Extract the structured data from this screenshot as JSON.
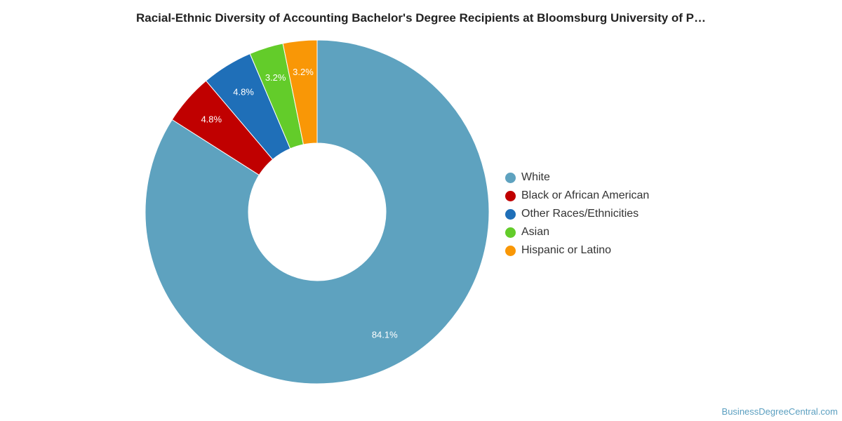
{
  "chart_data": {
    "type": "pie",
    "title": "Racial-Ethnic Diversity of Accounting Bachelor's Degree Recipients at Bloomsburg University of P…",
    "categories": [
      "White",
      "Black or African American",
      "Other Races/Ethnicities",
      "Asian",
      "Hispanic or Latino"
    ],
    "values": [
      84.1,
      4.8,
      4.8,
      3.2,
      3.2
    ],
    "data_labels": [
      "84.1%",
      "4.8%",
      "4.8%",
      "3.2%",
      "3.2%"
    ],
    "colors": [
      "#5ea2bf",
      "#c00000",
      "#1f6fb8",
      "#63cc2a",
      "#f99706"
    ],
    "donut": true,
    "legend_position": "right"
  },
  "watermark": "BusinessDegreeCentral.com"
}
